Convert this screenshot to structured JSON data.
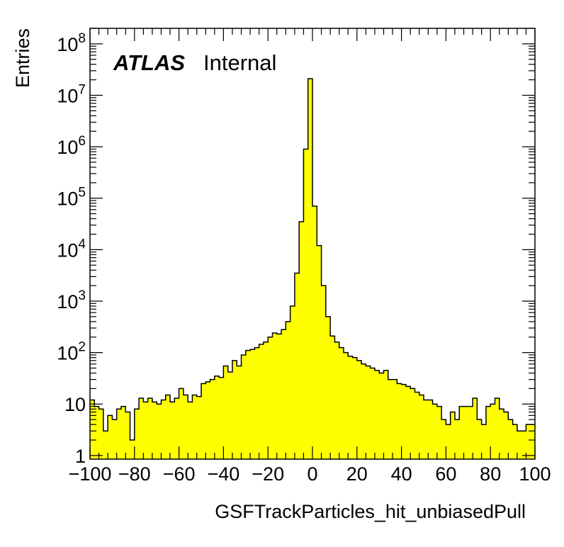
{
  "chart_data": {
    "type": "bar",
    "title": "",
    "xlabel": "GSFTrackParticles_hit_unbiasedPull",
    "ylabel": "Entries",
    "xlim": [
      -100,
      100
    ],
    "ylim": [
      0.85,
      200000000
    ],
    "yscale": "log",
    "bin_width": 2,
    "bin_low_edges": [
      -100,
      -98,
      -96,
      -94,
      -92,
      -90,
      -88,
      -86,
      -84,
      -82,
      -80,
      -78,
      -76,
      -74,
      -72,
      -70,
      -68,
      -66,
      -64,
      -62,
      -60,
      -58,
      -56,
      -54,
      -52,
      -50,
      -48,
      -46,
      -44,
      -42,
      -40,
      -38,
      -36,
      -34,
      -32,
      -30,
      -28,
      -26,
      -24,
      -22,
      -20,
      -18,
      -16,
      -14,
      -12,
      -10,
      -8,
      -6,
      -4,
      -2,
      0,
      2,
      4,
      6,
      8,
      10,
      12,
      14,
      16,
      18,
      20,
      22,
      24,
      26,
      28,
      30,
      32,
      34,
      36,
      38,
      40,
      42,
      44,
      46,
      48,
      50,
      52,
      54,
      56,
      58,
      60,
      62,
      64,
      66,
      68,
      70,
      72,
      74,
      76,
      78,
      80,
      82,
      84,
      86,
      88,
      90,
      92,
      94,
      96,
      98
    ],
    "values": [
      12,
      9,
      8,
      3,
      6,
      5,
      8,
      9,
      7,
      2,
      8,
      13,
      11,
      13,
      11,
      10,
      12,
      15,
      11,
      13,
      20,
      15,
      11,
      15,
      14,
      25,
      27,
      30,
      35,
      33,
      55,
      42,
      70,
      55,
      90,
      110,
      115,
      125,
      145,
      160,
      200,
      240,
      230,
      280,
      400,
      800,
      3500,
      35000,
      900000,
      21000000,
      70000,
      12000,
      2000,
      500,
      210,
      160,
      125,
      100,
      85,
      80,
      70,
      60,
      55,
      50,
      45,
      40,
      45,
      30,
      30,
      25,
      24,
      22,
      20,
      17,
      15,
      12,
      12,
      10,
      9,
      5,
      4,
      7,
      5,
      9,
      9,
      9,
      13,
      5,
      4,
      9,
      10,
      13,
      8,
      7,
      5,
      4,
      3,
      3,
      4,
      4
    ],
    "series": [
      {
        "name": "",
        "color": "#ffff00"
      }
    ],
    "annotations": [
      {
        "bold_italic": "ATLAS",
        "regular": "Internal"
      }
    ],
    "x_ticks": [
      -100,
      -80,
      -60,
      -40,
      -20,
      0,
      20,
      40,
      60,
      80,
      100
    ],
    "x_tick_labels": [
      "−100",
      "−80",
      "−60",
      "−40",
      "−20",
      "0",
      "20",
      "40",
      "60",
      "80",
      "100"
    ],
    "y_ticks": [
      1,
      10,
      100,
      1000,
      10000,
      100000,
      1000000,
      10000000,
      100000000
    ],
    "y_tick_mantissa": [
      "1",
      "10",
      "10",
      "10",
      "10",
      "10",
      "10",
      "10",
      "10"
    ],
    "y_tick_exponent": [
      "",
      "",
      "2",
      "3",
      "4",
      "5",
      "6",
      "7",
      "8"
    ],
    "grid": false,
    "legend": "none",
    "fill_color": "#ffff00",
    "line_color": "#000000"
  }
}
